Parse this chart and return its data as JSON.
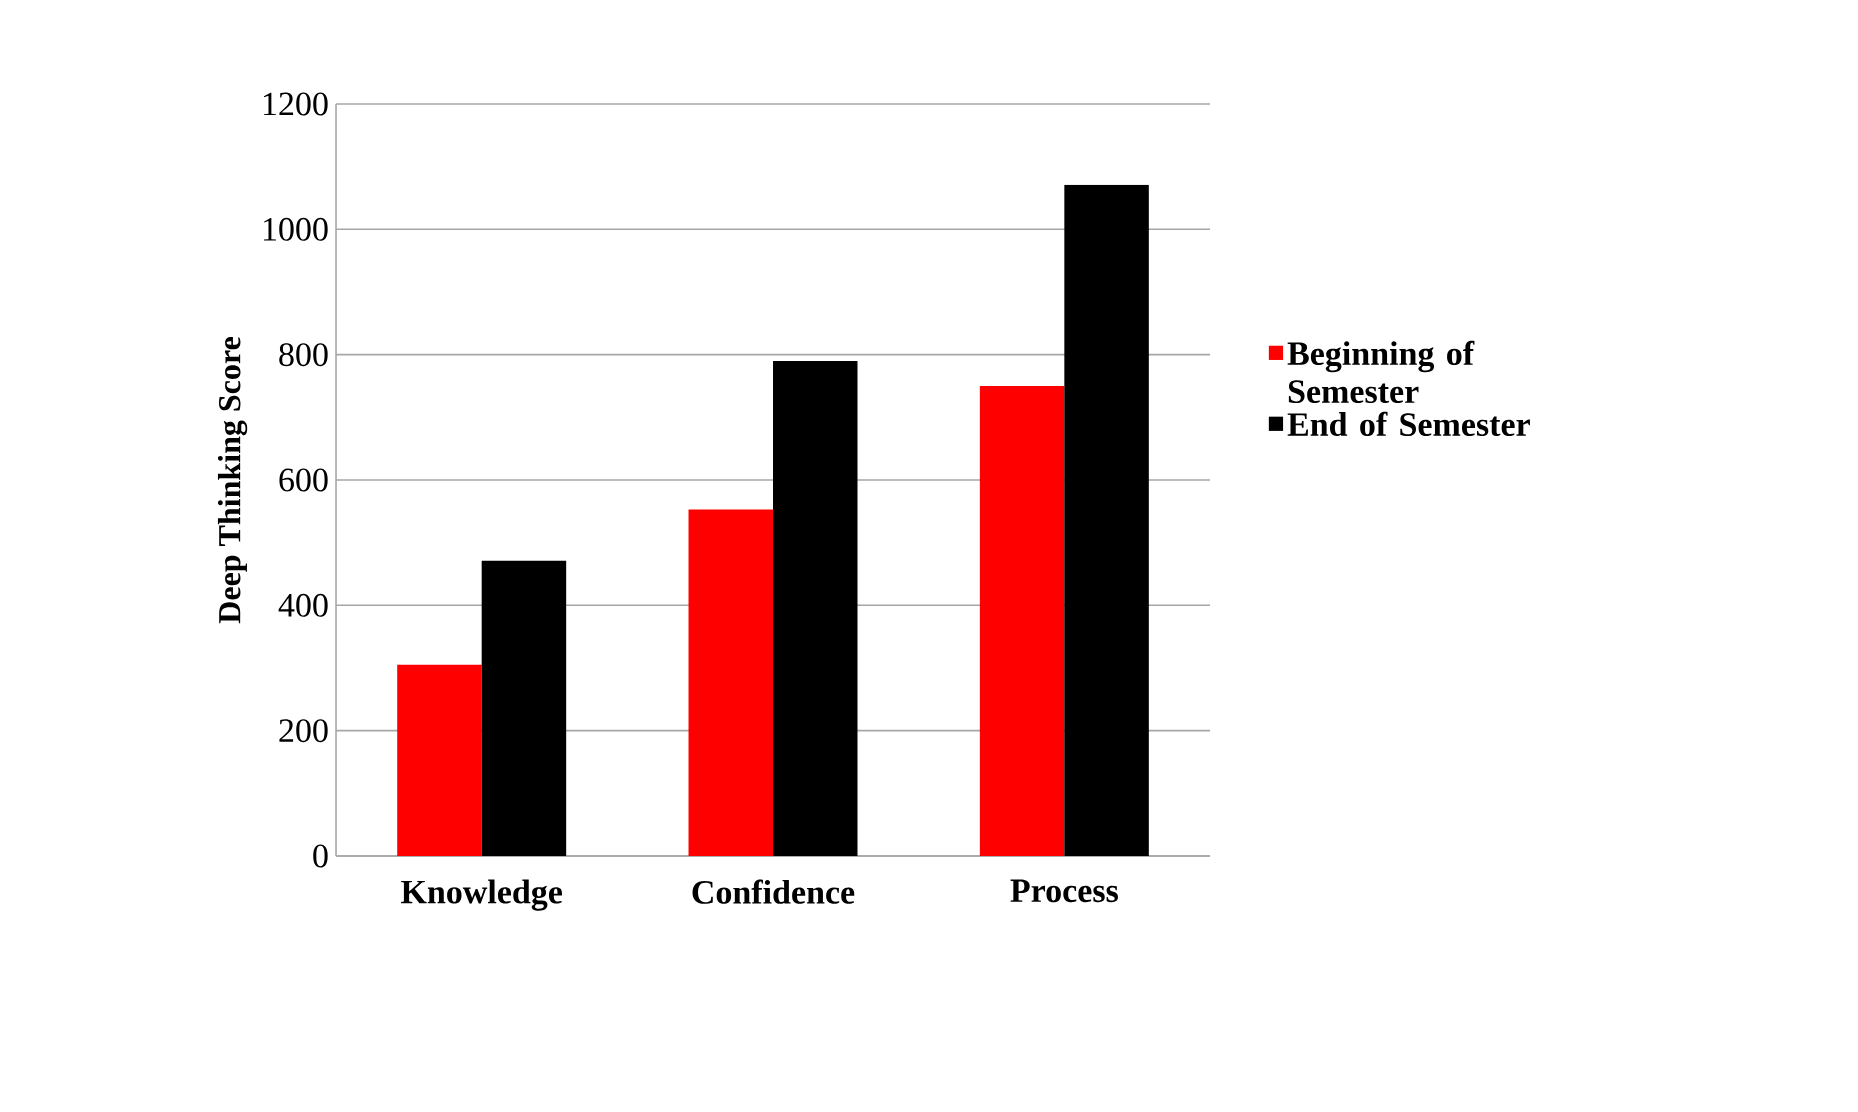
{
  "chart_data": {
    "type": "bar",
    "ylabel": "Deep Thinking Score",
    "categories": [
      "Knowledge",
      "Confidence",
      "Process"
    ],
    "series": [
      {
        "name": "Beginning of Semester",
        "color": "#ff0000",
        "values": [
          305,
          553,
          750
        ]
      },
      {
        "name": "End of Semester",
        "color": "#000000",
        "values": [
          471,
          790,
          1071
        ]
      }
    ],
    "ylim": [
      0,
      1200
    ],
    "yticks": [
      0,
      200,
      400,
      600,
      800,
      1000,
      1200
    ],
    "grid": "y",
    "legend": "right"
  }
}
